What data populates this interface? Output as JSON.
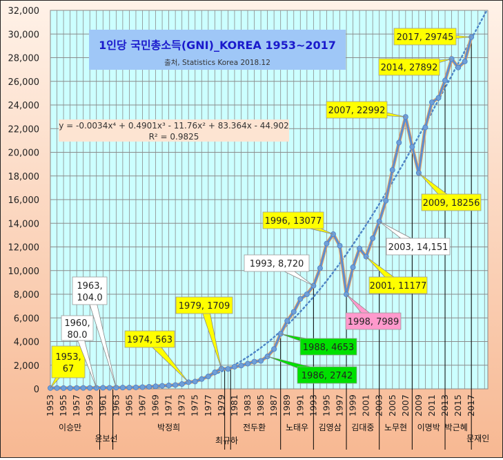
{
  "chart_data": {
    "type": "line",
    "title": "1인당 국민총소득(GNI)_KOREA 1953~2017",
    "subtitle": "출처, Statistics Korea 2018.12",
    "equation": "y = -0.0034x⁴ + 0.4901x³ - 11.76x² + 83.364x - 44.902",
    "r_squared": "R² = 0.9825",
    "xlabel": "",
    "ylabel": "",
    "ylim": [
      0,
      32000
    ],
    "y_ticks": [
      "0",
      "2,000",
      "4,000",
      "6,000",
      "8,000",
      "10,000",
      "12,000",
      "14,000",
      "16,000",
      "18,000",
      "20,000",
      "22,000",
      "24,000",
      "26,000",
      "28,000",
      "30,000",
      "32,000"
    ],
    "x_ticks": [
      "1953",
      "1955",
      "1957",
      "1959",
      "1961",
      "1963",
      "1965",
      "1967",
      "1969",
      "1971",
      "1973",
      "1975",
      "1977",
      "1979",
      "1981",
      "1983",
      "1985",
      "1987",
      "1989",
      "1991",
      "1993",
      "1995",
      "1997",
      "1999",
      "2001",
      "2003",
      "2005",
      "2007",
      "2009",
      "2011",
      "2013",
      "2015",
      "2017"
    ],
    "grid": true,
    "trendline": "polynomial order 4 (dotted)",
    "series": [
      {
        "name": "",
        "x": [
          1953,
          1954,
          1955,
          1956,
          1957,
          1958,
          1959,
          1960,
          1961,
          1962,
          1963,
          1964,
          1965,
          1966,
          1967,
          1968,
          1969,
          1970,
          1971,
          1972,
          1973,
          1974,
          1975,
          1976,
          1977,
          1978,
          1979,
          1980,
          1981,
          1982,
          1983,
          1984,
          1985,
          1986,
          1987,
          1988,
          1989,
          1990,
          1991,
          1992,
          1993,
          1994,
          1995,
          1996,
          1997,
          1998,
          1999,
          2000,
          2001,
          2002,
          2003,
          2004,
          2005,
          2006,
          2007,
          2008,
          2009,
          2010,
          2011,
          2012,
          2013,
          2014,
          2015,
          2016,
          2017
        ],
        "values": [
          67,
          70,
          65,
          66,
          74,
          80,
          81,
          80,
          92,
          88,
          104,
          107,
          107,
          127,
          146,
          177,
          216,
          257,
          291,
          323,
          407,
          563,
          617,
          830,
          1051,
          1398,
          1709,
          1686,
          1870,
          1970,
          2130,
          2300,
          2368,
          2742,
          3368,
          4653,
          5743,
          6514,
          7600,
          8000,
          8720,
          10205,
          12282,
          13077,
          12103,
          7989,
          10282,
          11865,
          11177,
          12735,
          14151,
          15908,
          18507,
          20823,
          22992,
          20463,
          18256,
          22105,
          24226,
          24600,
          26070,
          27892,
          27171,
          27681,
          29745
        ]
      }
    ],
    "annotations": [
      {
        "label": "1953, 67",
        "x": 1953,
        "y": 67,
        "bg": "#ffff00"
      },
      {
        "label": "1960, 80.0",
        "x": 1960,
        "y": 80,
        "bg": "#ffffff"
      },
      {
        "label": "1963, 104.0",
        "x": 1963,
        "y": 104,
        "bg": "#ffffff"
      },
      {
        "label": "1974, 563",
        "x": 1974,
        "y": 563,
        "bg": "#ffff00"
      },
      {
        "label": "1979, 1709",
        "x": 1979,
        "y": 1709,
        "bg": "#ffff00"
      },
      {
        "label": "1986, 2742",
        "x": 1986,
        "y": 2742,
        "bg": "#00e000"
      },
      {
        "label": "1988, 4653",
        "x": 1988,
        "y": 4653,
        "bg": "#00e000"
      },
      {
        "label": "1993, 8,720",
        "x": 1993,
        "y": 8720,
        "bg": "#ffffff"
      },
      {
        "label": "1996, 13077",
        "x": 1996,
        "y": 13077,
        "bg": "#ffff00"
      },
      {
        "label": "1998, 7989",
        "x": 1998,
        "y": 7989,
        "bg": "#ff99cc"
      },
      {
        "label": "2001, 11177",
        "x": 2001,
        "y": 11177,
        "bg": "#ffff00"
      },
      {
        "label": "2003, 14,151",
        "x": 2003,
        "y": 14151,
        "bg": "#ffffff"
      },
      {
        "label": "2007, 22992",
        "x": 2007,
        "y": 22992,
        "bg": "#ffff00"
      },
      {
        "label": "2009, 18256",
        "x": 2009,
        "y": 18256,
        "bg": "#ffff00"
      },
      {
        "label": "2014, 27892",
        "x": 2014,
        "y": 27892,
        "bg": "#ffff00"
      },
      {
        "label": "2017, 29745",
        "x": 2017,
        "y": 29745,
        "bg": "#ffff00"
      }
    ],
    "presidents": [
      {
        "name": "이승만",
        "line_x": 1960.5,
        "label_x": 1956,
        "row": 0
      },
      {
        "name": "윤보선",
        "line_x": 1962.5,
        "label_x": 1961.5,
        "row": 1
      },
      {
        "name": "박정희",
        "line_x": 1979.5,
        "label_x": 1971,
        "row": 0
      },
      {
        "name": "최규하",
        "line_x": 1980.4,
        "label_x": 1979.8,
        "row": 2
      },
      {
        "name": "전두환",
        "line_x": 1988,
        "label_x": 1984,
        "row": 0
      },
      {
        "name": "노태우",
        "line_x": 1993,
        "label_x": 1990.5,
        "row": 0
      },
      {
        "name": "김영삼",
        "line_x": 1998,
        "label_x": 1995.5,
        "row": 0
      },
      {
        "name": "김대중",
        "line_x": 2003,
        "label_x": 2000.5,
        "row": 0
      },
      {
        "name": "노무현",
        "line_x": 2008,
        "label_x": 2005.5,
        "row": 0
      },
      {
        "name": "이명박",
        "line_x": 2013,
        "label_x": 2010.5,
        "row": 0
      },
      {
        "name": "박근혜",
        "line_x": 2017,
        "label_x": 2014.7,
        "row": 0
      },
      {
        "name": "문재인",
        "line_x": null,
        "label_x": 2018,
        "row": 1
      }
    ],
    "colors": {
      "plot_bg": "#ccffff",
      "grid": "#8a8a8a",
      "line": "#5b8fd0",
      "marker": "#6f9fd8",
      "highlight": "#f4a460",
      "trend": "#4f86c6",
      "title_box": "#9fc7f7",
      "title_text": "#1a1acc",
      "outer_bg_top": "#fff2e8",
      "outer_bg_bottom": "#f7b892"
    }
  }
}
